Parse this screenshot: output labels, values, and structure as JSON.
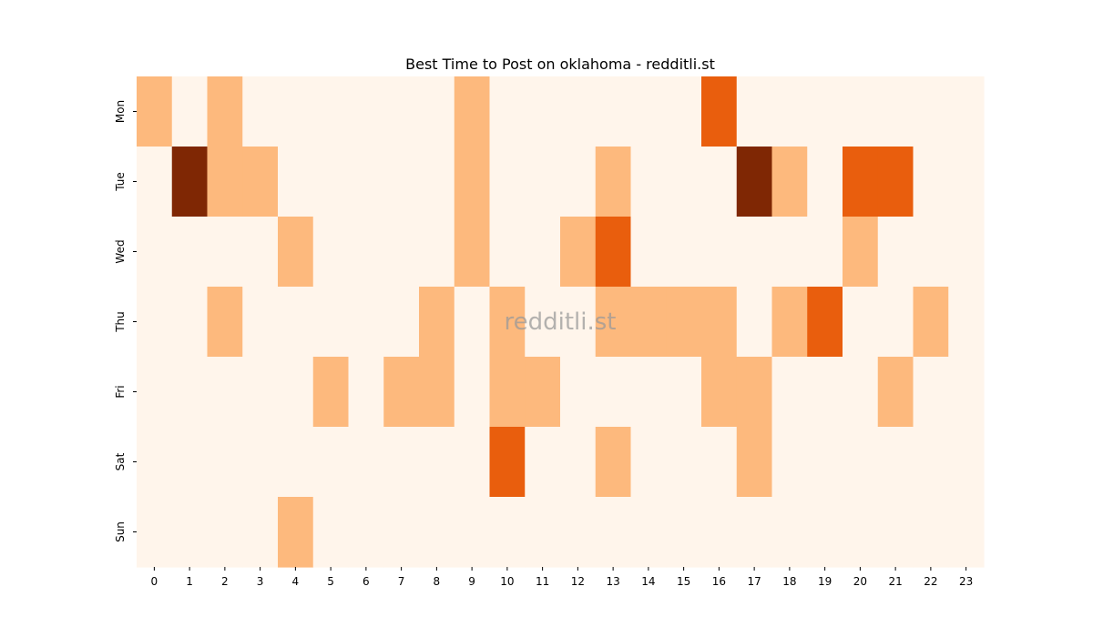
{
  "chart_data": {
    "type": "heatmap",
    "title": "Best Time to Post on oklahoma - redditli.st",
    "watermark": "redditli.st",
    "x": [
      "0",
      "1",
      "2",
      "3",
      "4",
      "5",
      "6",
      "7",
      "8",
      "9",
      "10",
      "11",
      "12",
      "13",
      "14",
      "15",
      "16",
      "17",
      "18",
      "19",
      "20",
      "21",
      "22",
      "23"
    ],
    "y": [
      "Mon",
      "Tue",
      "Wed",
      "Thu",
      "Fri",
      "Sat",
      "Sun"
    ],
    "values": [
      [
        1,
        0,
        1,
        0,
        0,
        0,
        0,
        0,
        0,
        1,
        0,
        0,
        0,
        0,
        0,
        0,
        2,
        0,
        0,
        0,
        0,
        0,
        0,
        0
      ],
      [
        0,
        3,
        1,
        1,
        0,
        0,
        0,
        0,
        0,
        1,
        0,
        0,
        0,
        1,
        0,
        0,
        0,
        3,
        1,
        0,
        2,
        2,
        0,
        0
      ],
      [
        0,
        0,
        0,
        0,
        1,
        0,
        0,
        0,
        0,
        1,
        0,
        0,
        1,
        2,
        0,
        0,
        0,
        0,
        0,
        0,
        1,
        0,
        0,
        0
      ],
      [
        0,
        0,
        1,
        0,
        0,
        0,
        0,
        0,
        1,
        0,
        1,
        0,
        0,
        1,
        1,
        1,
        1,
        0,
        1,
        2,
        0,
        0,
        1,
        0
      ],
      [
        0,
        0,
        0,
        0,
        0,
        1,
        0,
        1,
        1,
        0,
        1,
        1,
        0,
        0,
        0,
        0,
        1,
        1,
        0,
        0,
        0,
        1,
        0,
        0
      ],
      [
        0,
        0,
        0,
        0,
        0,
        0,
        0,
        0,
        0,
        0,
        2,
        0,
        0,
        1,
        0,
        0,
        0,
        1,
        0,
        0,
        0,
        0,
        0,
        0
      ],
      [
        0,
        0,
        0,
        0,
        1,
        0,
        0,
        0,
        0,
        0,
        0,
        0,
        0,
        0,
        0,
        0,
        0,
        0,
        0,
        0,
        0,
        0,
        0,
        0
      ]
    ],
    "colorscale": [
      "#fff5eb",
      "#fdb97d",
      "#e95e0d",
      "#7f2704"
    ],
    "colorbar": false,
    "grid": false
  }
}
